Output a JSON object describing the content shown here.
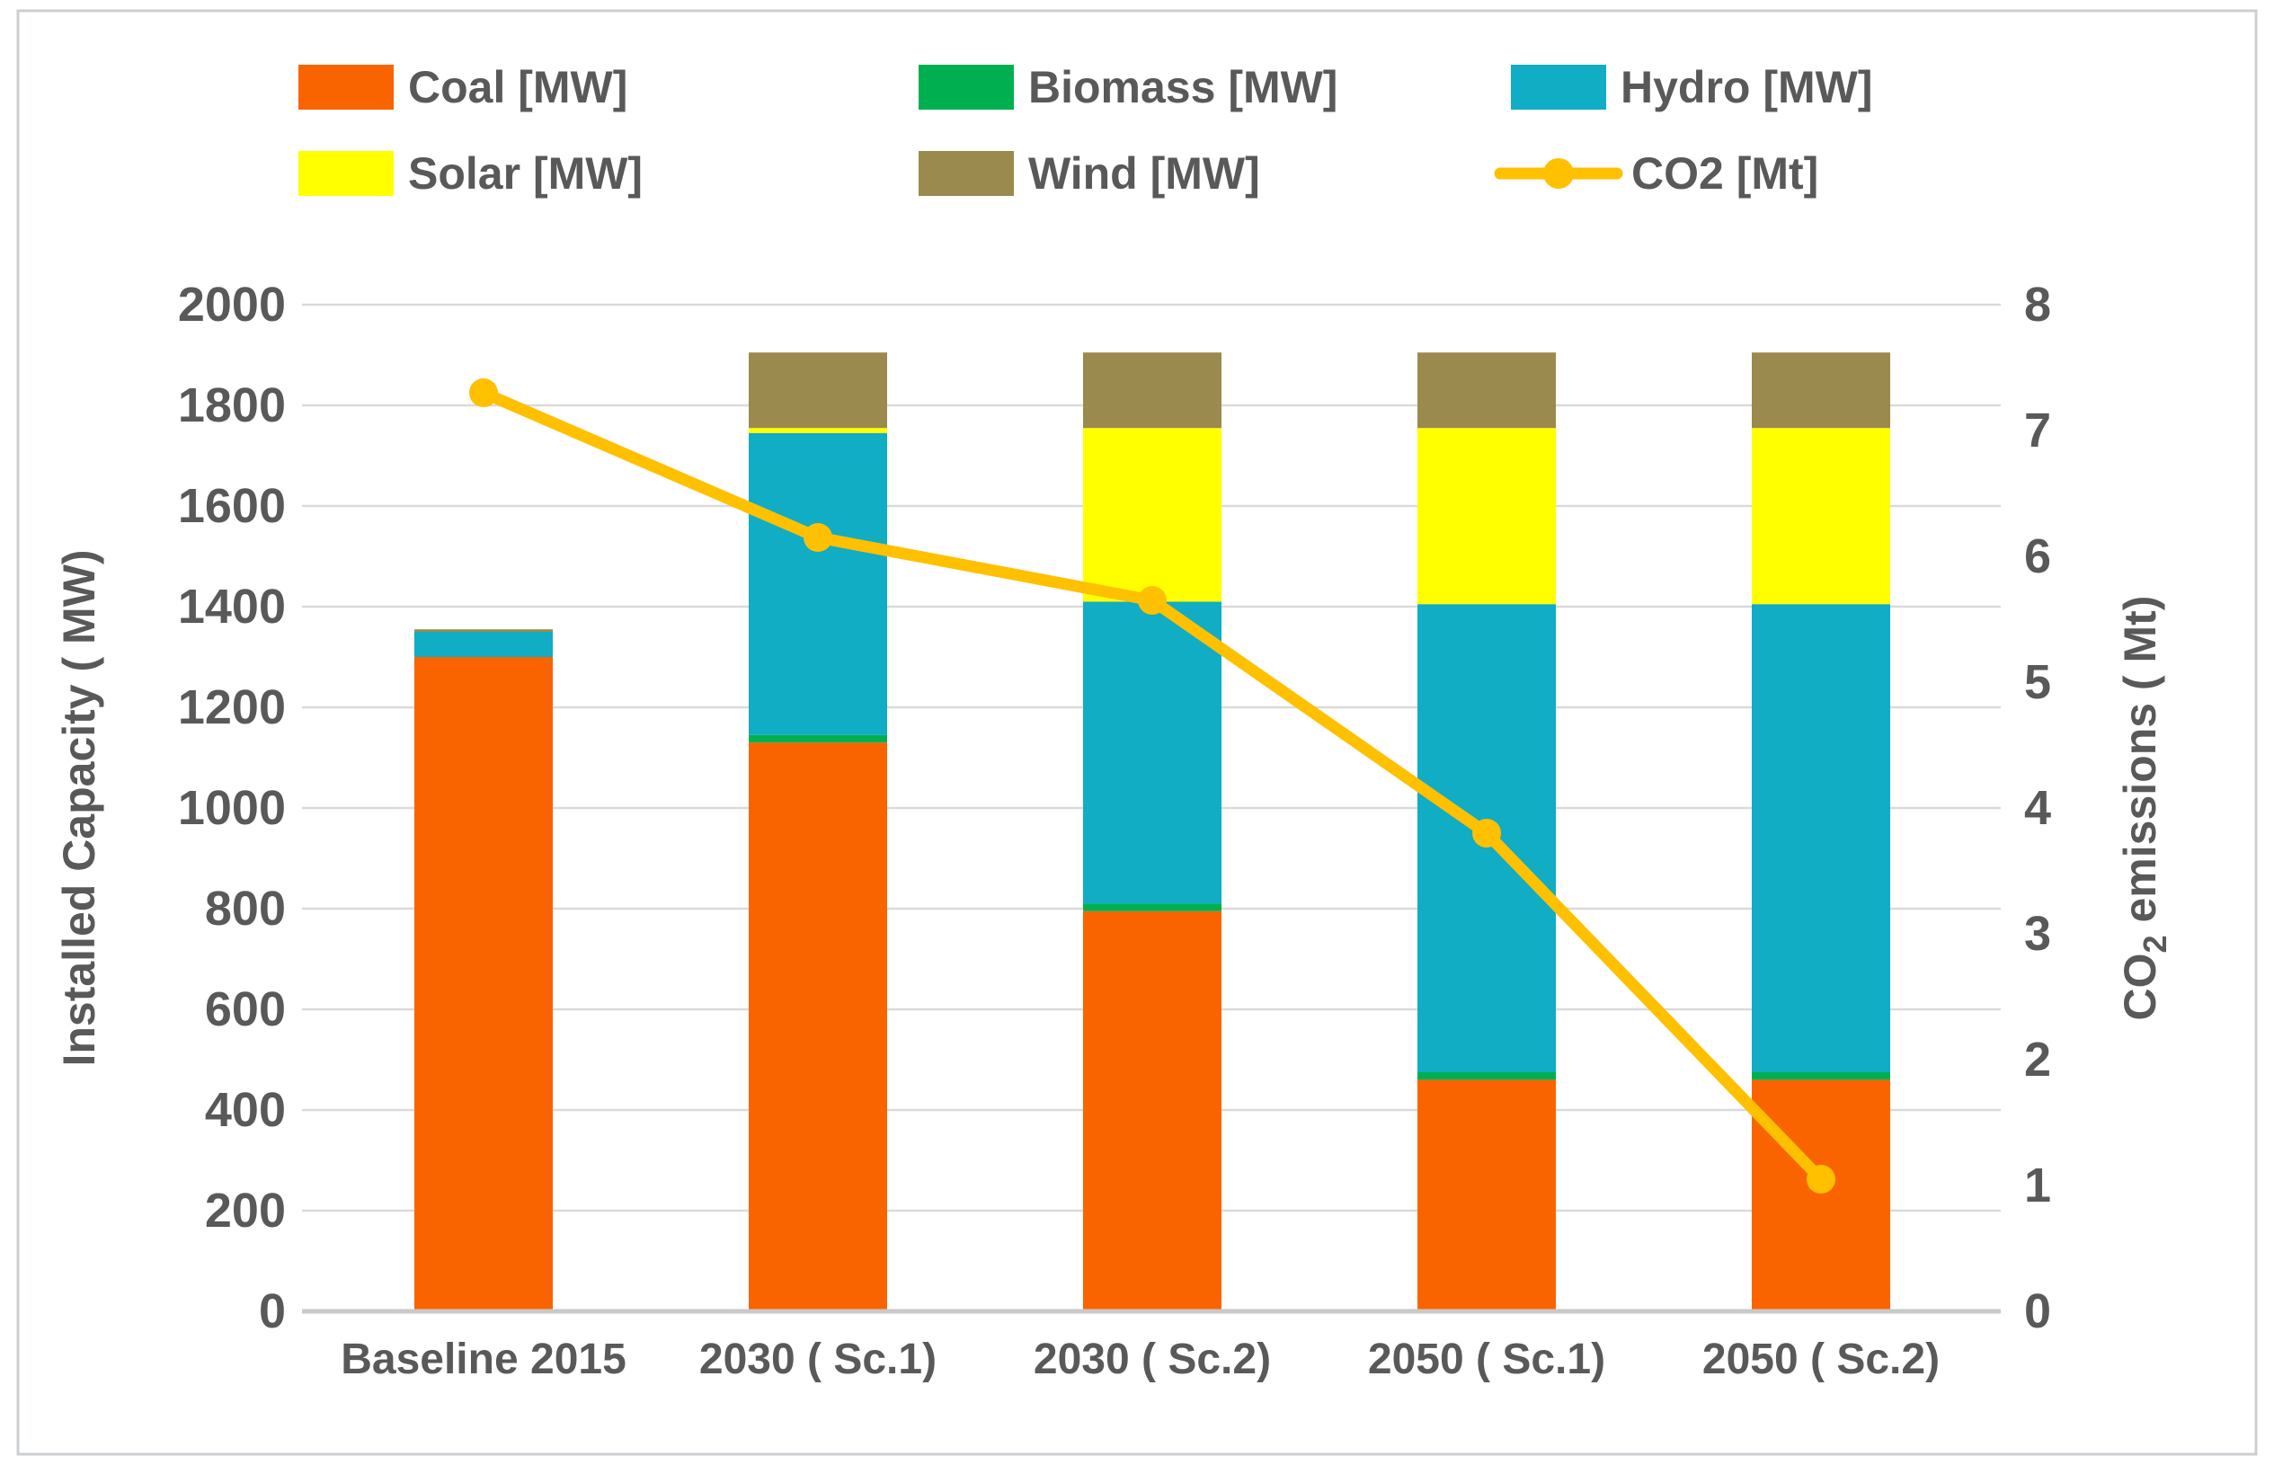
{
  "page": {
    "background": "#ffffff",
    "frame_border_color": "#cbcfd2"
  },
  "chart_data": {
    "type": "combo-stacked-bar-line",
    "title": "",
    "categories": [
      "Baseline 2015",
      "2030 ( Sc.1)",
      "2030 ( Sc.2)",
      "2050 ( Sc.1)",
      "2050 ( Sc.2)"
    ],
    "bar_series": [
      {
        "name": "Coal [MW]",
        "color": "#FA6400",
        "values": [
          1300,
          1130,
          795,
          460,
          460
        ]
      },
      {
        "name": "Biomass [MW]",
        "color": "#00B050",
        "values": [
          0,
          15,
          15,
          15,
          15
        ]
      },
      {
        "name": "Hydro [MW]",
        "color": "#10ADC4",
        "values": [
          50,
          600,
          600,
          930,
          930
        ]
      },
      {
        "name": "Solar [MW]",
        "color": "#FFFF00",
        "values": [
          0,
          10,
          345,
          350,
          350
        ]
      },
      {
        "name": "Wind [MW]",
        "color": "#9A8A4E",
        "values": [
          5,
          150,
          150,
          150,
          150
        ]
      }
    ],
    "line_series": {
      "name": "CO2 [Mt]",
      "color": "#FFC000",
      "values": [
        7.3,
        6.15,
        5.65,
        3.8,
        1.05
      ]
    },
    "left_axis": {
      "title": "Installed Capacity ( MW)",
      "min": 0,
      "max": 2000,
      "step": 200,
      "ticks": [
        0,
        200,
        400,
        600,
        800,
        1000,
        1200,
        1400,
        1600,
        1800,
        2000
      ]
    },
    "right_axis": {
      "title_parts": [
        "CO",
        "2",
        " emissions ( Mt)"
      ],
      "min": 0,
      "max": 8,
      "step": 1,
      "ticks": [
        0,
        1,
        2,
        3,
        4,
        5,
        6,
        7,
        8
      ]
    },
    "grid": true,
    "legend_position": "top",
    "colors": {
      "text": "#595959",
      "grid": "#DADADA",
      "axis_line": "#C9C9C9"
    }
  }
}
